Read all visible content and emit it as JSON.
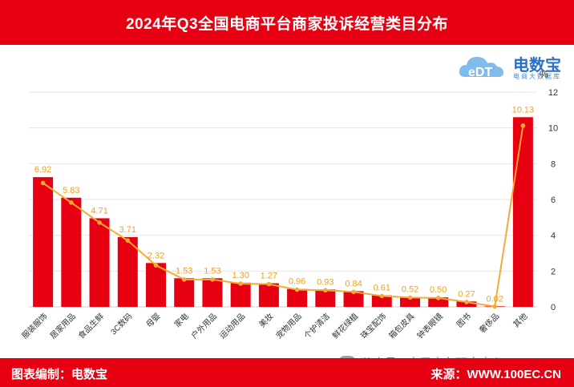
{
  "header": {
    "title": "2024年Q3全国电商平台商家投诉经营类目分布"
  },
  "logo": {
    "main": "电数宝",
    "sub": "电商大数据库",
    "mark": "eDT"
  },
  "footer": {
    "left": "图表编制：电数宝",
    "right": "来源：WWW.100EC.CN"
  },
  "watermark": {
    "text": "公众号 · 电子商务研究中心"
  },
  "colors": {
    "bar": "#e60012",
    "line": "#f7a935",
    "label": "#f0a020",
    "brand": "#e60012"
  },
  "chart_data": {
    "type": "bar",
    "unit": "%",
    "categories": [
      "服装服饰",
      "居家用品",
      "食品生鲜",
      "3C数码",
      "母婴",
      "家电",
      "户外用品",
      "运动用品",
      "美妆",
      "宠物用品",
      "个护清洁",
      "鲜花绿植",
      "珠宝配饰",
      "箱包皮具",
      "钟表眼镜",
      "图书",
      "奢侈品",
      "其他"
    ],
    "values": [
      6.92,
      5.83,
      4.71,
      3.71,
      2.32,
      1.53,
      1.53,
      1.3,
      1.27,
      0.96,
      0.93,
      0.84,
      0.61,
      0.52,
      0.5,
      0.27,
      0.02,
      10.13
    ],
    "value_labels": [
      "6.92",
      "5.83",
      "4.71",
      "3.71",
      "2.32",
      "1.53",
      "1.53",
      "1.30",
      "1.27",
      "0.96",
      "0.93",
      "0.84",
      "0.61",
      "0.52",
      "0.50",
      "0.27",
      "0.02",
      "10.13"
    ],
    "ylim": [
      0,
      12
    ],
    "yticks": [
      "0",
      "2",
      "4",
      "6",
      "8",
      "10",
      "12"
    ],
    "bar_values": [
      7.25,
      6.1,
      4.95,
      3.9,
      2.45,
      1.6,
      1.6,
      1.35,
      1.32,
      1.0,
      0.97,
      0.88,
      0.64,
      0.55,
      0.53,
      0.3,
      0.03,
      10.6
    ],
    "grid": true,
    "legend": "none"
  }
}
